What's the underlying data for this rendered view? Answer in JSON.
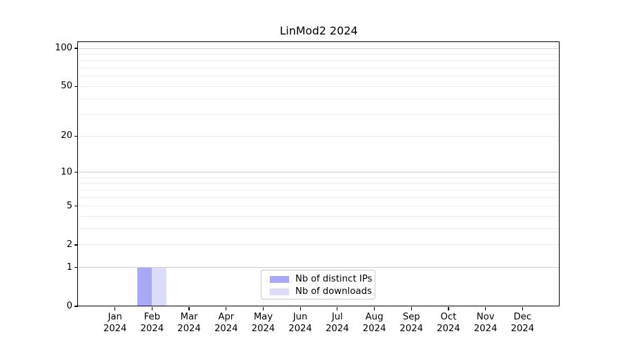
{
  "chart_data": {
    "type": "bar",
    "title": "LinMod2 2024",
    "categories": [
      "Jan 2024",
      "Feb 2024",
      "Mar 2024",
      "Apr 2024",
      "May 2024",
      "Jun 2024",
      "Jul 2024",
      "Aug 2024",
      "Sep 2024",
      "Oct 2024",
      "Nov 2024",
      "Dec 2024"
    ],
    "series": [
      {
        "name": "Nb of distinct IPs",
        "color": "#a8a8f6",
        "values": [
          0,
          1,
          0,
          0,
          0,
          0,
          0,
          0,
          0,
          0,
          0,
          0
        ]
      },
      {
        "name": "Nb of downloads",
        "color": "#dcdcf9",
        "values": [
          0,
          1,
          0,
          0,
          0,
          0,
          0,
          0,
          0,
          0,
          0,
          0
        ]
      }
    ],
    "xlabel": "",
    "ylabel": "",
    "y_scale": "log1p",
    "ylim": [
      0,
      112
    ],
    "y_ticks": [
      0,
      1,
      2,
      5,
      10,
      20,
      50,
      100
    ],
    "y_major_gridlines": [
      1,
      10,
      100
    ],
    "y_minor_gridlines": [
      2,
      3,
      4,
      5,
      6,
      7,
      8,
      9,
      20,
      30,
      40,
      50,
      60,
      70,
      80,
      90
    ],
    "grid": true,
    "legend_position": "lower center"
  },
  "colors": {
    "background": "#ffffff",
    "axis": "#000000",
    "text": "#000000",
    "major_grid": "#cccccc",
    "minor_grid": "#ededed",
    "legend_border": "#c8c8c8"
  }
}
